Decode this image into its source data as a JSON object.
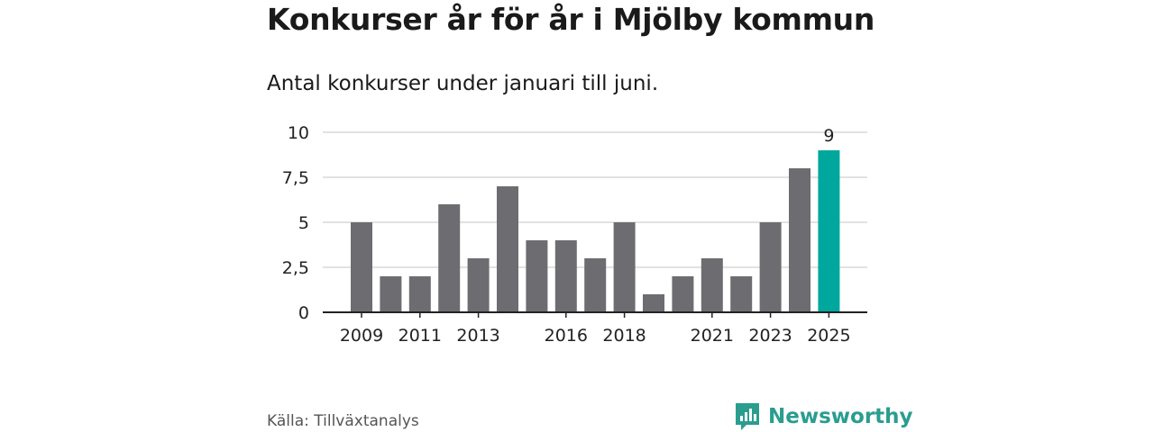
{
  "header": {
    "title": "Konkurser år för år i Mjölby kommun",
    "subtitle": "Antal konkurser under januari till juni."
  },
  "footer": {
    "source": "Källa: Tillväxtanalys",
    "brand": "Newsworthy"
  },
  "colors": {
    "bar": "#6d6c71",
    "highlight": "#00a79d",
    "grid": "#d9d9d9",
    "axis": "#222222",
    "brand": "#2a9d8f"
  },
  "chart_data": {
    "type": "bar",
    "categories": [
      "2009",
      "2010",
      "2011",
      "2012",
      "2013",
      "2014",
      "2015",
      "2016",
      "2017",
      "2018",
      "2019",
      "2020",
      "2021",
      "2022",
      "2023",
      "2024",
      "2025"
    ],
    "values": [
      5,
      2,
      2,
      6,
      3,
      7,
      4,
      4,
      3,
      5,
      1,
      2,
      3,
      2,
      5,
      8,
      9
    ],
    "highlight_index": 16,
    "data_labels": [
      {
        "index": 16,
        "text": "9"
      }
    ],
    "x_tick_labels": [
      "2009",
      "2011",
      "2013",
      "2016",
      "2018",
      "2021",
      "2023",
      "2025"
    ],
    "y_ticks": [
      0,
      2.5,
      5,
      7.5,
      10
    ],
    "y_tick_labels": [
      "0",
      "2,5",
      "5",
      "7,5",
      "10"
    ],
    "ylim": [
      0,
      10
    ],
    "grid": true,
    "xlabel": "",
    "ylabel": ""
  }
}
